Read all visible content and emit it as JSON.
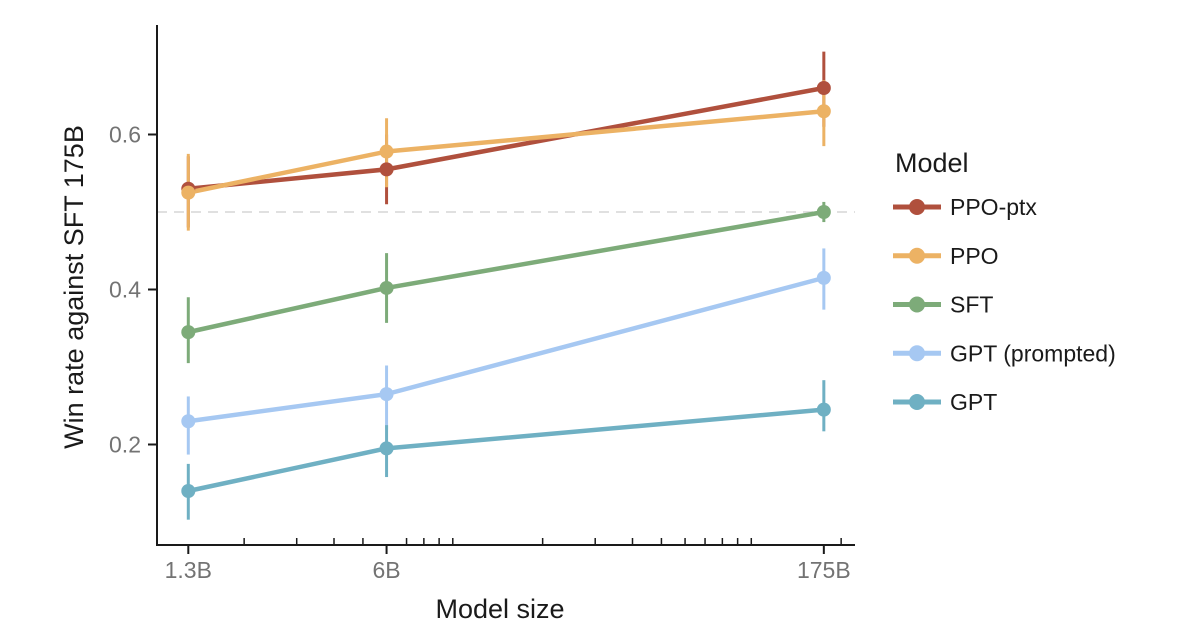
{
  "styles": {
    "background": "#ffffff",
    "axis_color": "#1a1a1a",
    "tick_label_color": "#737373",
    "axis_label_color": "#1a1a1a",
    "reference_line_color": "#dcdcdc",
    "legend_text_color": "#1a1a1a"
  },
  "chart_data": {
    "type": "line",
    "title": "",
    "xlabel": "Model size",
    "ylabel": "Win rate against SFT 175B",
    "legend_title": "Model",
    "legend_position": "right",
    "x_scale": "log",
    "x_values": [
      1.3,
      6,
      175
    ],
    "x_tick_labels": [
      "1.3B",
      "6B",
      "175B"
    ],
    "x_minor_ticks": [
      2,
      3,
      4,
      5,
      7,
      8,
      9,
      10,
      20,
      30,
      40,
      50,
      60,
      70,
      80,
      90,
      100,
      200
    ],
    "y_ticks": [
      0.2,
      0.4,
      0.6
    ],
    "y_tick_labels": [
      "0.2",
      "0.4",
      "0.6"
    ],
    "ylim": [
      0.07,
      0.74
    ],
    "grid": false,
    "reference_line_y": 0.5,
    "series": [
      {
        "name": "PPO-ptx",
        "color": "#b0503d",
        "values": [
          0.53,
          0.555,
          0.66
        ],
        "err_low": [
          0.48,
          0.51,
          0.61
        ],
        "err_high": [
          0.572,
          0.6,
          0.707
        ]
      },
      {
        "name": "PPO",
        "color": "#ecb264",
        "values": [
          0.525,
          0.578,
          0.63
        ],
        "err_low": [
          0.476,
          0.532,
          0.585
        ],
        "err_high": [
          0.575,
          0.621,
          0.67
        ]
      },
      {
        "name": "SFT",
        "color": "#7dab79",
        "values": [
          0.345,
          0.402,
          0.5
        ],
        "err_low": [
          0.305,
          0.357,
          0.487
        ],
        "err_high": [
          0.39,
          0.447,
          0.513
        ]
      },
      {
        "name": "GPT (prompted)",
        "color": "#a6c8f2",
        "values": [
          0.23,
          0.265,
          0.415
        ],
        "err_low": [
          0.187,
          0.219,
          0.374
        ],
        "err_high": [
          0.262,
          0.302,
          0.453
        ]
      },
      {
        "name": "GPT",
        "color": "#6fb0c3",
        "values": [
          0.14,
          0.195,
          0.245
        ],
        "err_low": [
          0.103,
          0.158,
          0.217
        ],
        "err_high": [
          0.175,
          0.225,
          0.283
        ]
      }
    ]
  }
}
